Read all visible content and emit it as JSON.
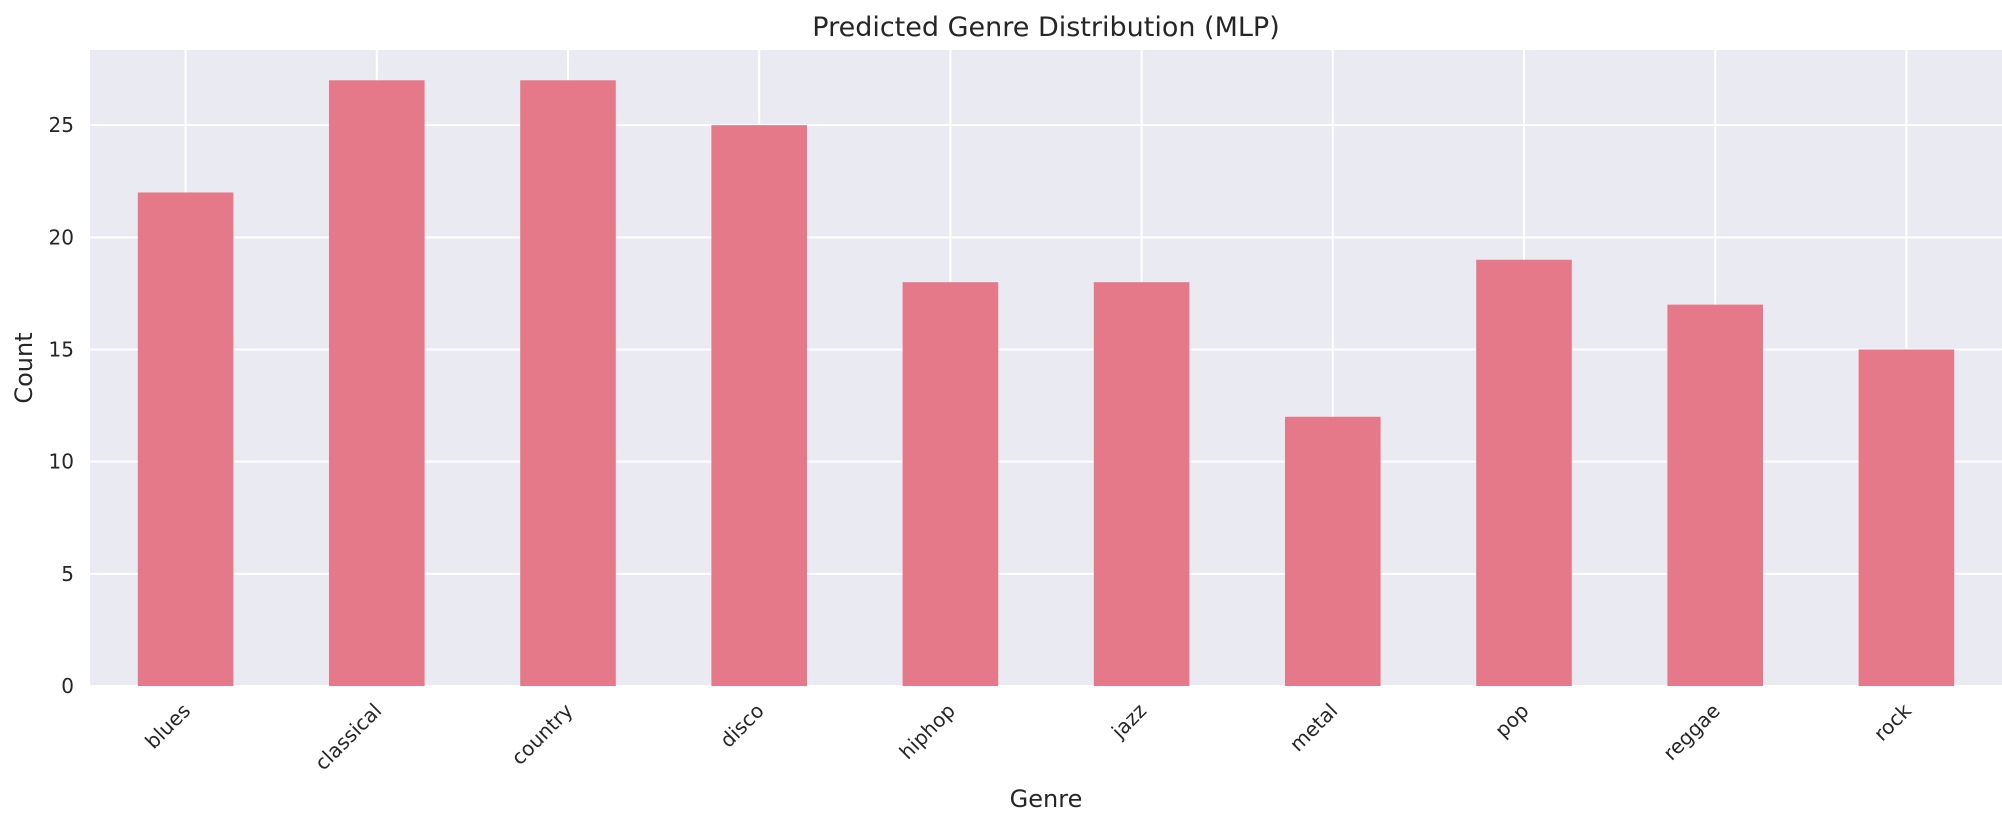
{
  "chart_data": {
    "type": "bar",
    "title": "Predicted Genre Distribution (MLP)",
    "xlabel": "Genre",
    "ylabel": "Count",
    "categories": [
      "blues",
      "classical",
      "country",
      "disco",
      "hiphop",
      "jazz",
      "metal",
      "pop",
      "reggae",
      "rock"
    ],
    "values": [
      22,
      27,
      27,
      25,
      18,
      18,
      12,
      19,
      17,
      15
    ],
    "ylim": [
      0,
      28.35
    ],
    "yticks": [
      0,
      5,
      10,
      15,
      20,
      25
    ],
    "grid": true,
    "legend": "none",
    "colors": {
      "bar": "#e67989",
      "plot_background": "#eaeaf2",
      "grid": "#ffffff",
      "text": "#262626"
    }
  }
}
